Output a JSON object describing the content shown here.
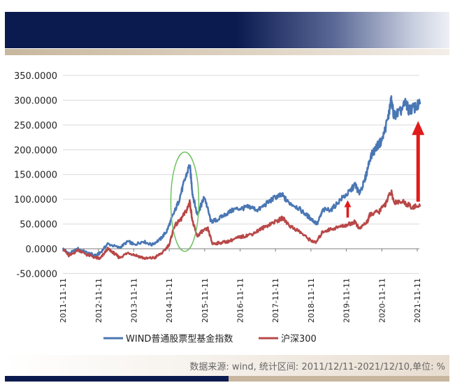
{
  "chart_data": {
    "type": "line",
    "title": "",
    "xlabel": "",
    "ylabel": "",
    "x_tick_labels": [
      "2011-11-11",
      "2012-11-11",
      "2013-11-11",
      "2014-11-11",
      "2015-11-11",
      "2016-11-11",
      "2017-11-11",
      "2018-11-11",
      "2019-11-11",
      "2020-11-11",
      "2021-11-11"
    ],
    "y_tick_labels": [
      "350.0000",
      "300.0000",
      "250.0000",
      "200.0000",
      "150.0000",
      "100.0000",
      "50.0000",
      "0.0000",
      "-50.0000"
    ],
    "ylim": [
      -50,
      350
    ],
    "grid": "horizontal",
    "legend": "bottom",
    "series": [
      {
        "name": "WIND普通股票型基金指数",
        "color": "#4a77b4",
        "points": [
          [
            "2011-11-11",
            0
          ],
          [
            "2012-01-15",
            -10
          ],
          [
            "2012-04-15",
            0
          ],
          [
            "2012-07-15",
            -8
          ],
          [
            "2012-10-15",
            -14
          ],
          [
            "2012-12-01",
            -8
          ],
          [
            "2013-02-15",
            10
          ],
          [
            "2013-06-15",
            2
          ],
          [
            "2013-09-15",
            15
          ],
          [
            "2013-11-15",
            8
          ],
          [
            "2014-02-15",
            15
          ],
          [
            "2014-05-15",
            8
          ],
          [
            "2014-08-15",
            20
          ],
          [
            "2014-10-15",
            35
          ],
          [
            "2014-12-15",
            65
          ],
          [
            "2015-02-15",
            95
          ],
          [
            "2015-04-15",
            135
          ],
          [
            "2015-06-10",
            170
          ],
          [
            "2015-07-10",
            110
          ],
          [
            "2015-08-25",
            70
          ],
          [
            "2015-09-30",
            85
          ],
          [
            "2015-11-10",
            105
          ],
          [
            "2016-01-15",
            55
          ],
          [
            "2016-03-15",
            58
          ],
          [
            "2016-06-15",
            70
          ],
          [
            "2016-09-15",
            80
          ],
          [
            "2016-12-15",
            82
          ],
          [
            "2017-02-15",
            85
          ],
          [
            "2017-05-15",
            78
          ],
          [
            "2017-08-15",
            92
          ],
          [
            "2017-11-15",
            105
          ],
          [
            "2018-01-20",
            108
          ],
          [
            "2018-03-15",
            95
          ],
          [
            "2018-06-15",
            85
          ],
          [
            "2018-09-15",
            70
          ],
          [
            "2018-11-15",
            60
          ],
          [
            "2019-01-15",
            50
          ],
          [
            "2019-03-15",
            78
          ],
          [
            "2019-06-15",
            80
          ],
          [
            "2019-09-15",
            100
          ],
          [
            "2019-12-15",
            115
          ],
          [
            "2020-02-10",
            130
          ],
          [
            "2020-03-20",
            112
          ],
          [
            "2020-05-15",
            135
          ],
          [
            "2020-07-15",
            185
          ],
          [
            "2020-09-15",
            205
          ],
          [
            "2020-11-15",
            220
          ],
          [
            "2021-01-15",
            265
          ],
          [
            "2021-02-15",
            300
          ],
          [
            "2021-03-15",
            270
          ],
          [
            "2021-05-15",
            275
          ],
          [
            "2021-07-15",
            295
          ],
          [
            "2021-08-15",
            280
          ],
          [
            "2021-10-15",
            285
          ],
          [
            "2021-12-10",
            292
          ]
        ]
      },
      {
        "name": "沪深300",
        "color": "#b84848",
        "points": [
          [
            "2011-11-11",
            0
          ],
          [
            "2012-01-15",
            -15
          ],
          [
            "2012-04-15",
            -2
          ],
          [
            "2012-07-15",
            -12
          ],
          [
            "2012-10-15",
            -18
          ],
          [
            "2012-12-01",
            -20
          ],
          [
            "2013-02-15",
            0
          ],
          [
            "2013-04-15",
            -8
          ],
          [
            "2013-06-15",
            -18
          ],
          [
            "2013-09-15",
            -8
          ],
          [
            "2013-12-15",
            -14
          ],
          [
            "2014-03-15",
            -20
          ],
          [
            "2014-06-15",
            -18
          ],
          [
            "2014-09-15",
            -6
          ],
          [
            "2014-11-15",
            10
          ],
          [
            "2014-12-31",
            45
          ],
          [
            "2015-03-15",
            60
          ],
          [
            "2015-05-15",
            80
          ],
          [
            "2015-06-10",
            95
          ],
          [
            "2015-07-10",
            55
          ],
          [
            "2015-08-25",
            25
          ],
          [
            "2015-10-15",
            35
          ],
          [
            "2015-12-15",
            40
          ],
          [
            "2016-01-30",
            10
          ],
          [
            "2016-04-15",
            12
          ],
          [
            "2016-07-15",
            15
          ],
          [
            "2016-10-15",
            22
          ],
          [
            "2016-12-15",
            25
          ],
          [
            "2017-03-15",
            30
          ],
          [
            "2017-06-15",
            40
          ],
          [
            "2017-09-15",
            50
          ],
          [
            "2017-12-15",
            58
          ],
          [
            "2018-01-25",
            62
          ],
          [
            "2018-04-15",
            45
          ],
          [
            "2018-07-15",
            35
          ],
          [
            "2018-10-15",
            20
          ],
          [
            "2018-12-31",
            12
          ],
          [
            "2019-03-15",
            35
          ],
          [
            "2019-06-15",
            40
          ],
          [
            "2019-09-15",
            45
          ],
          [
            "2019-12-15",
            50
          ],
          [
            "2020-02-10",
            55
          ],
          [
            "2020-03-20",
            40
          ],
          [
            "2020-06-15",
            55
          ],
          [
            "2020-07-15",
            70
          ],
          [
            "2020-10-15",
            75
          ],
          [
            "2020-12-15",
            90
          ],
          [
            "2021-02-15",
            115
          ],
          [
            "2021-03-15",
            95
          ],
          [
            "2021-06-15",
            95
          ],
          [
            "2021-09-15",
            85
          ],
          [
            "2021-12-10",
            85
          ]
        ]
      }
    ],
    "annotations": [
      {
        "type": "ellipse",
        "color": "#6fc161",
        "x": "2015-06-10",
        "y": 95
      },
      {
        "type": "arrow",
        "color": "#e01b1b",
        "x": "2019-11-25",
        "y_from": 63,
        "y_to": 98
      },
      {
        "type": "arrow",
        "color": "#e01b1b",
        "x": "2021-11-20",
        "y_from": 95,
        "y_to": 258
      }
    ]
  },
  "footer": {
    "source": "数据来源: wind, 统计区间: 2011/12/11-2021/12/10,单位: %"
  }
}
